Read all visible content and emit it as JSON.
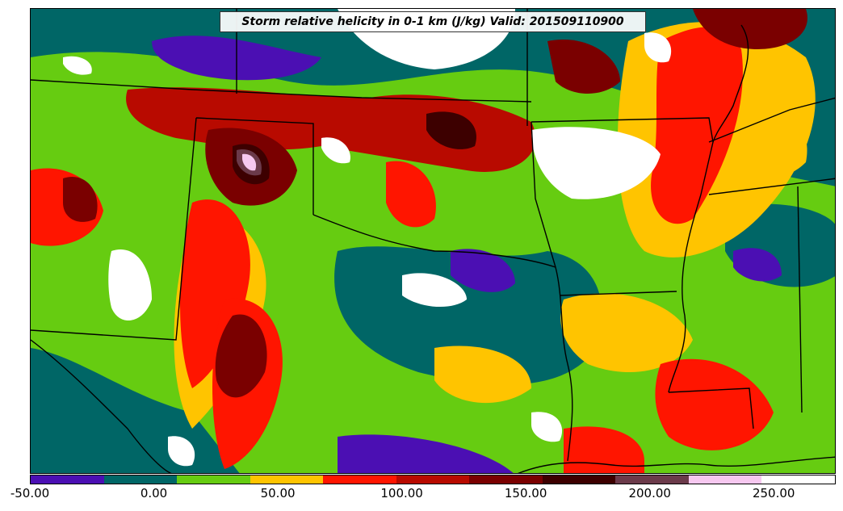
{
  "map": {
    "title": "Storm relative helicity in 0-1 km (J/kg) Valid: 201509110900"
  },
  "colorbar": {
    "colors": [
      "#4b0fb3",
      "#006666",
      "#66cc11",
      "#ffc400",
      "#ff1500",
      "#b80a00",
      "#7a0000",
      "#3d0000",
      "#6b3a4a",
      "#f7c8f0",
      "#ffffff"
    ],
    "ticks": [
      "-50.00",
      "0.00",
      "50.00",
      "100.00",
      "150.00",
      "200.00",
      "250.00"
    ],
    "range": [
      -50,
      275
    ],
    "level_step": 25
  }
}
